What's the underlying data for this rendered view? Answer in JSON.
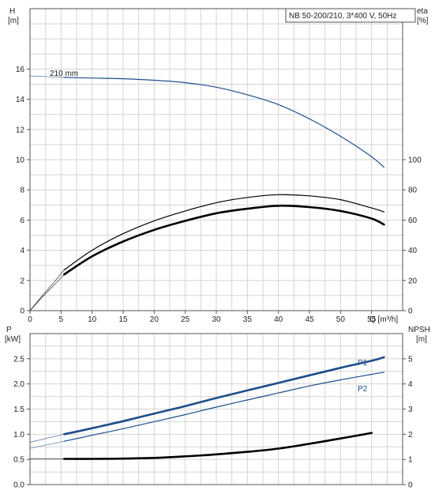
{
  "colors": {
    "blue": "#1f4e8c",
    "black": "#000000",
    "grid": "#d4d4d4",
    "frame": "#555555"
  },
  "chart_data": [
    {
      "type": "line",
      "title": "NB 50-200/210, 3*400 V, 50Hz",
      "xlabel": "Q [m³/h]",
      "ylabel_left": "H\n[m]",
      "ylabel_right": "eta\n[%]",
      "xlim": [
        0,
        60
      ],
      "ylim_left": [
        0,
        20
      ],
      "ylim_right": [
        0,
        200
      ],
      "x_ticks": [
        0,
        5,
        10,
        15,
        20,
        25,
        30,
        35,
        40,
        45,
        50,
        55
      ],
      "x_tick_labels": [
        "0",
        "5",
        "10",
        "15",
        "20",
        "25",
        "30",
        "35",
        "40",
        "45",
        "50",
        "55"
      ],
      "y_ticks_left": [
        0,
        2,
        4,
        6,
        8,
        10,
        12,
        14,
        16
      ],
      "y_tick_labels_left": [
        "0",
        "2",
        "4",
        "6",
        "8",
        "10",
        "12",
        "14",
        "16"
      ],
      "y_ticks_right": [
        0,
        20,
        40,
        60,
        80,
        100
      ],
      "y_tick_labels_right": [
        "0",
        "20",
        "40",
        "60",
        "80",
        "100"
      ],
      "grid": true,
      "annotations": [
        {
          "text": "210 mm",
          "x": 5.5,
          "y": 15.7
        }
      ],
      "series": [
        {
          "name": "",
          "axis": "left",
          "color": "#1f4e8c",
          "points": [
            [
              5.5,
              15.45
            ],
            [
              10,
              15.41
            ],
            [
              15,
              15.36
            ],
            [
              20,
              15.26
            ],
            [
              25,
              15.1
            ],
            [
              30,
              14.8
            ],
            [
              35,
              14.3
            ],
            [
              40,
              13.65
            ],
            [
              45,
              12.7
            ],
            [
              50,
              11.55
            ],
            [
              55,
              10.2
            ],
            [
              57,
              9.5
            ]
          ],
          "extrapolation": [
            [
              0,
              15.55
            ],
            [
              5.5,
              15.45
            ]
          ]
        },
        {
          "name": "",
          "axis": "right",
          "color": "#000000",
          "points": [
            [
              5.5,
              27
            ],
            [
              10,
              40
            ],
            [
              15,
              51
            ],
            [
              20,
              59.5
            ],
            [
              25,
              66
            ],
            [
              30,
              71.5
            ],
            [
              35,
              75
            ],
            [
              40,
              76.8
            ],
            [
              45,
              76
            ],
            [
              50,
              73.5
            ],
            [
              55,
              68
            ],
            [
              57,
              65.5
            ]
          ],
          "extrapolation": [
            [
              0,
              0
            ],
            [
              2,
              10
            ],
            [
              4,
              19.5
            ],
            [
              5.5,
              27
            ]
          ]
        },
        {
          "name": "",
          "axis": "right",
          "color": "#000000",
          "bold": true,
          "points": [
            [
              5.5,
              24
            ],
            [
              10,
              36
            ],
            [
              15,
              45.8
            ],
            [
              20,
              53.5
            ],
            [
              25,
              59.5
            ],
            [
              30,
              64.5
            ],
            [
              35,
              67.5
            ],
            [
              40,
              69.5
            ],
            [
              45,
              68.6
            ],
            [
              50,
              66
            ],
            [
              55,
              61
            ],
            [
              57,
              57
            ]
          ],
          "extrapolation": [
            [
              0,
              0
            ],
            [
              2,
              9
            ],
            [
              4,
              17.5
            ],
            [
              5.5,
              24
            ]
          ]
        }
      ]
    },
    {
      "type": "line",
      "xlabel": "",
      "ylabel_left": "P\n[kW]",
      "ylabel_right": "NPSH\n[m]",
      "xlim": [
        0,
        60
      ],
      "ylim_left": [
        0,
        3.0
      ],
      "ylim_right": [
        0,
        6
      ],
      "y_ticks_left": [
        0,
        0.5,
        1.0,
        1.5,
        2.0,
        2.5
      ],
      "y_tick_labels_left": [
        "0.0",
        "0.5",
        "1.0",
        "1.5",
        "2.0",
        "2.5"
      ],
      "y_ticks_right": [
        0,
        1,
        2,
        3,
        4,
        5
      ],
      "y_tick_labels_right": [
        "0",
        "1",
        "2",
        "3",
        "4",
        "5"
      ],
      "grid": true,
      "series": [
        {
          "name": "P1",
          "axis": "left",
          "color": "#1f4e8c",
          "bold": true,
          "points": [
            [
              5.5,
              1.0
            ],
            [
              10,
              1.12
            ],
            [
              15,
              1.26
            ],
            [
              20,
              1.41
            ],
            [
              25,
              1.56
            ],
            [
              30,
              1.72
            ],
            [
              35,
              1.87
            ],
            [
              40,
              2.02
            ],
            [
              45,
              2.17
            ],
            [
              50,
              2.32
            ],
            [
              55,
              2.46
            ],
            [
              57,
              2.53
            ]
          ],
          "extrapolation": [
            [
              0,
              0.84
            ],
            [
              5.5,
              1.0
            ]
          ]
        },
        {
          "name": "P2",
          "axis": "left",
          "color": "#1f4e8c",
          "points": [
            [
              5.5,
              0.86
            ],
            [
              10,
              0.98
            ],
            [
              15,
              1.11
            ],
            [
              20,
              1.25
            ],
            [
              25,
              1.39
            ],
            [
              30,
              1.54
            ],
            [
              35,
              1.68
            ],
            [
              40,
              1.82
            ],
            [
              45,
              1.96
            ],
            [
              50,
              2.08
            ],
            [
              55,
              2.19
            ],
            [
              57,
              2.23
            ]
          ],
          "extrapolation": [
            [
              0,
              0.72
            ],
            [
              5.5,
              0.86
            ]
          ]
        },
        {
          "name": "",
          "axis": "right",
          "color": "#000000",
          "bold": true,
          "points": [
            [
              5.5,
              1.02
            ],
            [
              10,
              1.02
            ],
            [
              15,
              1.03
            ],
            [
              20,
              1.06
            ],
            [
              25,
              1.12
            ],
            [
              30,
              1.2
            ],
            [
              35,
              1.3
            ],
            [
              40,
              1.43
            ],
            [
              45,
              1.62
            ],
            [
              50,
              1.83
            ],
            [
              55,
              2.05
            ]
          ],
          "extrapolation": [
            [
              0,
              1.02
            ],
            [
              5.5,
              1.02
            ]
          ]
        }
      ]
    }
  ]
}
